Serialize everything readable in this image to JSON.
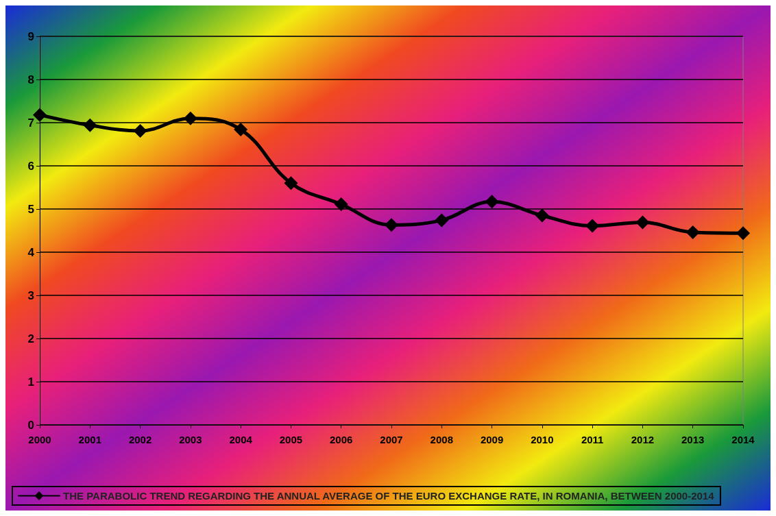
{
  "chart_data": {
    "type": "line",
    "categories": [
      "2000",
      "2001",
      "2002",
      "2003",
      "2004",
      "2005",
      "2006",
      "2007",
      "2008",
      "2009",
      "2010",
      "2011",
      "2012",
      "2013",
      "2014"
    ],
    "series": [
      {
        "name": "THE PARABOLIC TREND REGARDING THE ANNUAL AVERAGE OF THE EURO EXCHANGE RATE, IN ROMANIA, BETWEEN 2000-2014",
        "color": "#000000",
        "values": [
          7.18,
          6.94,
          6.81,
          7.1,
          6.84,
          5.6,
          5.11,
          4.63,
          4.74,
          5.17,
          4.85,
          4.61,
          4.69,
          4.46,
          4.44
        ]
      }
    ],
    "ylim": [
      0,
      9
    ],
    "yticks": [
      0,
      1,
      2,
      3,
      4,
      5,
      6,
      7,
      8,
      9
    ],
    "grid": "y",
    "legend": "bottom",
    "marker": "diamond",
    "line_style": "solid"
  }
}
